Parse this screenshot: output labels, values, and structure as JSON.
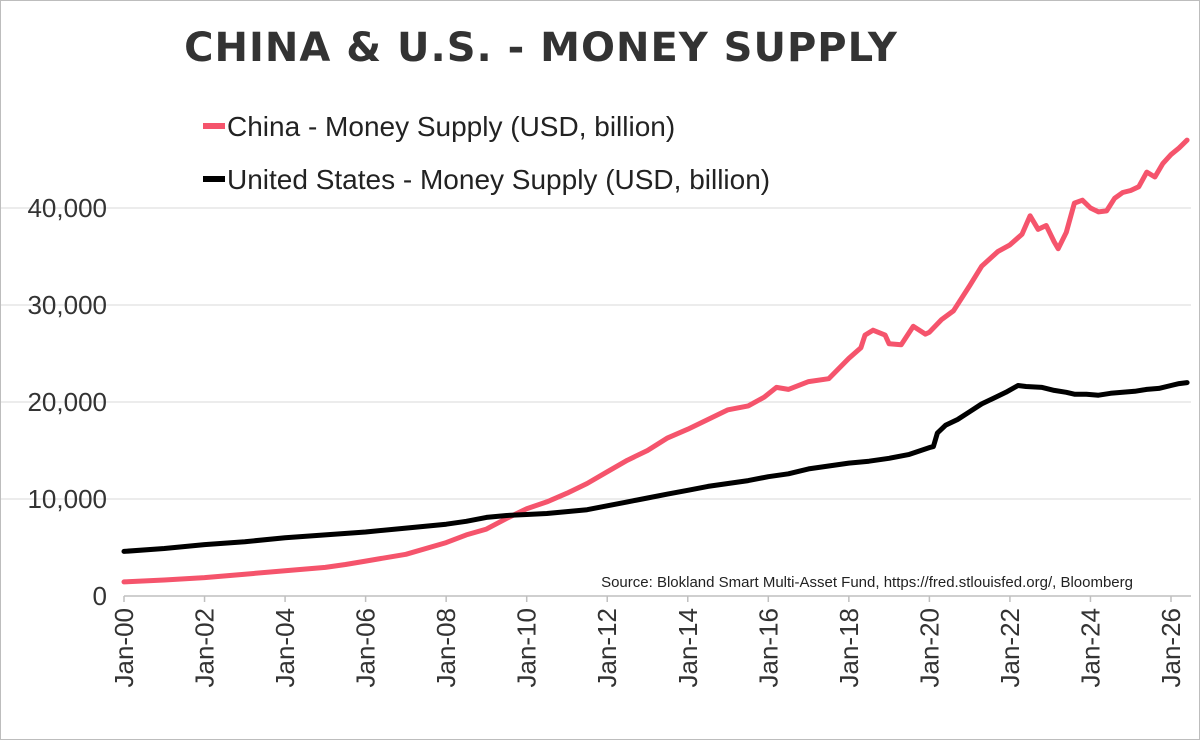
{
  "chart_data": {
    "type": "line",
    "title": "CHINA & U.S. - MONEY SUPPLY",
    "xlabel": "",
    "ylabel": "",
    "ylim": [
      0,
      48000
    ],
    "x_ticks": [
      "Jan-00",
      "Jan-02",
      "Jan-04",
      "Jan-06",
      "Jan-08",
      "Jan-10",
      "Jan-12",
      "Jan-14",
      "Jan-16",
      "Jan-18",
      "Jan-20",
      "Jan-22",
      "Jan-24",
      "Jan-26"
    ],
    "y_ticks": [
      0,
      10000,
      20000,
      30000,
      40000
    ],
    "y_tick_labels": [
      "0",
      "10,000",
      "20,000",
      "30,000",
      "40,000"
    ],
    "grid": true,
    "legend_position": "top-left",
    "annotation": "Source: Blokland Smart Multi-Asset Fund, https://fred.stlouisfed.org/, Bloomberg",
    "series": [
      {
        "name": "China - Money Supply (USD, billion)",
        "color": "#f5546c",
        "points": [
          [
            2000.0,
            1450
          ],
          [
            2001.0,
            1650
          ],
          [
            2002.0,
            1900
          ],
          [
            2003.0,
            2250
          ],
          [
            2004.0,
            2600
          ],
          [
            2005.0,
            2950
          ],
          [
            2005.5,
            3250
          ],
          [
            2006.0,
            3600
          ],
          [
            2007.0,
            4300
          ],
          [
            2008.0,
            5500
          ],
          [
            2008.5,
            6300
          ],
          [
            2009.0,
            6900
          ],
          [
            2009.5,
            8000
          ],
          [
            2010.0,
            9000
          ],
          [
            2010.5,
            9700
          ],
          [
            2011.0,
            10600
          ],
          [
            2011.5,
            11600
          ],
          [
            2012.0,
            12800
          ],
          [
            2012.5,
            14000
          ],
          [
            2013.0,
            15000
          ],
          [
            2013.5,
            16300
          ],
          [
            2014.0,
            17200
          ],
          [
            2014.5,
            18200
          ],
          [
            2015.0,
            19200
          ],
          [
            2015.5,
            19600
          ],
          [
            2015.9,
            20500
          ],
          [
            2016.2,
            21500
          ],
          [
            2016.5,
            21300
          ],
          [
            2017.0,
            22100
          ],
          [
            2017.5,
            22400
          ],
          [
            2018.0,
            24500
          ],
          [
            2018.3,
            25600
          ],
          [
            2018.4,
            26900
          ],
          [
            2018.6,
            27400
          ],
          [
            2018.9,
            26900
          ],
          [
            2019.0,
            26000
          ],
          [
            2019.3,
            25900
          ],
          [
            2019.6,
            27800
          ],
          [
            2019.9,
            27000
          ],
          [
            2020.0,
            27200
          ],
          [
            2020.3,
            28500
          ],
          [
            2020.6,
            29400
          ],
          [
            2021.0,
            32000
          ],
          [
            2021.3,
            34000
          ],
          [
            2021.7,
            35500
          ],
          [
            2022.0,
            36200
          ],
          [
            2022.3,
            37300
          ],
          [
            2022.5,
            39200
          ],
          [
            2022.7,
            37800
          ],
          [
            2022.9,
            38200
          ],
          [
            2023.1,
            36500
          ],
          [
            2023.2,
            35800
          ],
          [
            2023.4,
            37500
          ],
          [
            2023.6,
            40500
          ],
          [
            2023.8,
            40800
          ],
          [
            2024.0,
            40000
          ],
          [
            2024.2,
            39600
          ],
          [
            2024.4,
            39700
          ],
          [
            2024.6,
            41000
          ],
          [
            2024.8,
            41600
          ],
          [
            2025.0,
            41800
          ],
          [
            2025.2,
            42200
          ],
          [
            2025.4,
            43700
          ],
          [
            2025.6,
            43200
          ],
          [
            2025.8,
            44600
          ],
          [
            2026.0,
            45500
          ],
          [
            2026.2,
            46200
          ],
          [
            2026.4,
            47000
          ]
        ]
      },
      {
        "name": "United States - Money Supply (USD, billion)",
        "color": "#000000",
        "points": [
          [
            2000.0,
            4600
          ],
          [
            2001.0,
            4900
          ],
          [
            2002.0,
            5300
          ],
          [
            2003.0,
            5600
          ],
          [
            2004.0,
            6000
          ],
          [
            2005.0,
            6300
          ],
          [
            2006.0,
            6600
          ],
          [
            2007.0,
            7000
          ],
          [
            2008.0,
            7400
          ],
          [
            2008.5,
            7700
          ],
          [
            2009.0,
            8100
          ],
          [
            2009.5,
            8300
          ],
          [
            2010.0,
            8400
          ],
          [
            2010.5,
            8500
          ],
          [
            2011.0,
            8700
          ],
          [
            2011.5,
            8900
          ],
          [
            2012.0,
            9300
          ],
          [
            2012.5,
            9700
          ],
          [
            2013.0,
            10100
          ],
          [
            2013.5,
            10500
          ],
          [
            2014.0,
            10900
          ],
          [
            2014.5,
            11300
          ],
          [
            2015.0,
            11600
          ],
          [
            2015.5,
            11900
          ],
          [
            2016.0,
            12300
          ],
          [
            2016.5,
            12600
          ],
          [
            2017.0,
            13100
          ],
          [
            2017.5,
            13400
          ],
          [
            2018.0,
            13700
          ],
          [
            2018.5,
            13900
          ],
          [
            2019.0,
            14200
          ],
          [
            2019.5,
            14600
          ],
          [
            2020.0,
            15300
          ],
          [
            2020.1,
            15400
          ],
          [
            2020.2,
            16800
          ],
          [
            2020.4,
            17600
          ],
          [
            2020.7,
            18200
          ],
          [
            2021.0,
            19000
          ],
          [
            2021.3,
            19800
          ],
          [
            2021.6,
            20400
          ],
          [
            2021.9,
            21000
          ],
          [
            2022.2,
            21700
          ],
          [
            2022.4,
            21600
          ],
          [
            2022.8,
            21500
          ],
          [
            2023.1,
            21200
          ],
          [
            2023.4,
            21000
          ],
          [
            2023.6,
            20800
          ],
          [
            2023.9,
            20800
          ],
          [
            2024.2,
            20700
          ],
          [
            2024.5,
            20900
          ],
          [
            2024.8,
            21000
          ],
          [
            2025.1,
            21100
          ],
          [
            2025.4,
            21300
          ],
          [
            2025.7,
            21400
          ],
          [
            2026.0,
            21700
          ],
          [
            2026.2,
            21900
          ],
          [
            2026.4,
            22000
          ]
        ]
      }
    ]
  }
}
